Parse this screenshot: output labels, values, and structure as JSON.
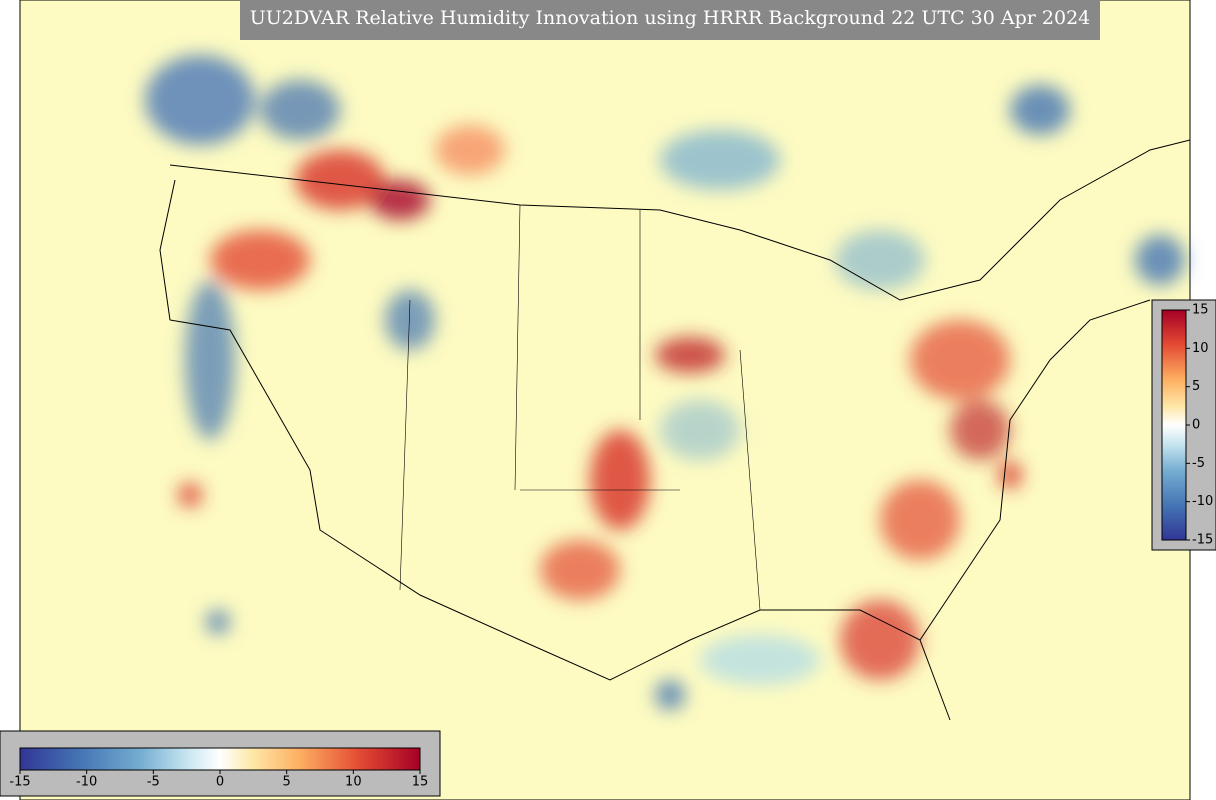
{
  "header": {
    "title": "UU2DVAR Relative Humidity Innovation using HRRR Background 22 UTC 30 Apr 2024"
  },
  "colorbar_vertical": {
    "range": [
      -15,
      15
    ],
    "ticks": [
      15,
      10,
      5,
      0,
      -5,
      -10,
      -15
    ]
  },
  "colorbar_horizontal": {
    "range": [
      -15,
      15
    ],
    "ticks": [
      -15,
      -10,
      -5,
      0,
      5,
      10,
      15
    ]
  }
}
